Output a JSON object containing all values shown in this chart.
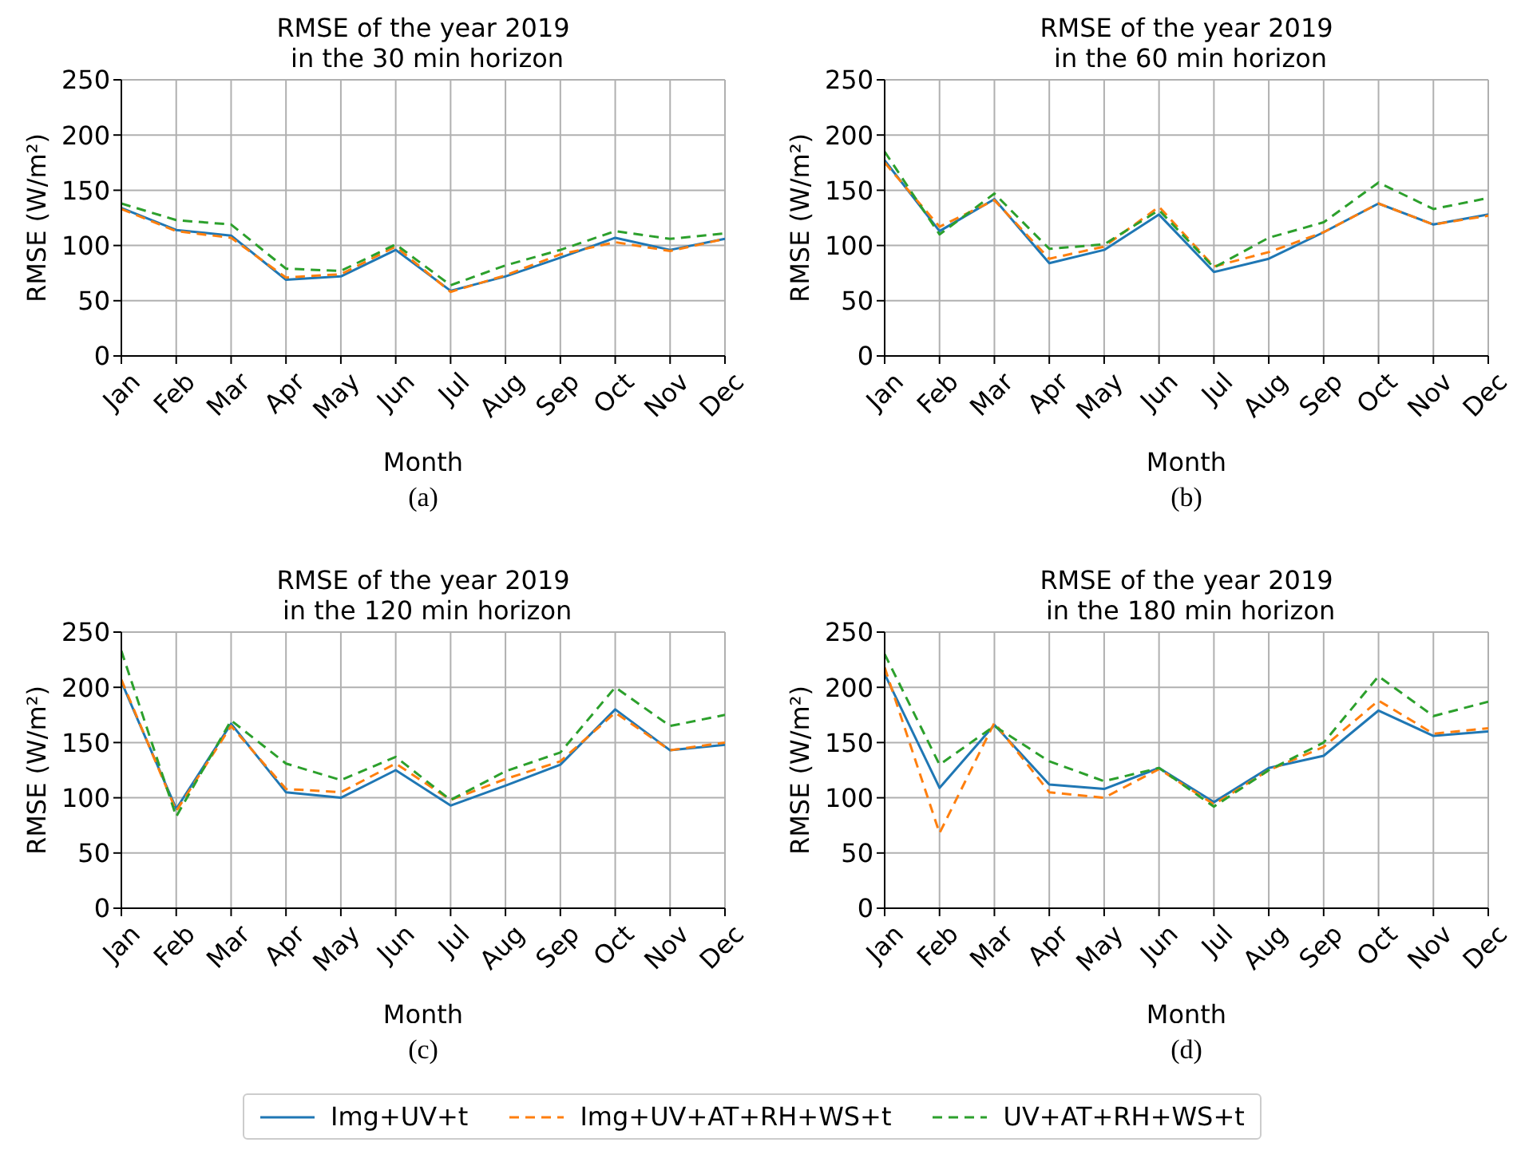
{
  "chart_data": [
    {
      "type": "line",
      "title": "RMSE of the year 2019\n in the 30 min horizon",
      "xlabel": "Month",
      "ylabel": "RMSE (W/m²)",
      "annotations": [
        "(a)"
      ],
      "categories": [
        "Jan",
        "Feb",
        "Mar",
        "Apr",
        "May",
        "Jun",
        "Jul",
        "Aug",
        "Sep",
        "Oct",
        "Nov",
        "Dec"
      ],
      "ylim": [
        0,
        250
      ],
      "yticks": [
        0,
        50,
        100,
        150,
        200,
        250
      ],
      "grid": true,
      "marker": "none",
      "legend": "bottom",
      "series": [
        {
          "name": "Img+UV+t",
          "color": "#1f77b4",
          "line_style": "solid",
          "values": [
            134,
            114,
            109,
            69,
            72,
            96,
            59,
            72,
            89,
            107,
            96,
            106
          ]
        },
        {
          "name": "Img+UV+AT+RH+WS+t",
          "color": "#ff7f0e",
          "line_style": "dashed",
          "values": [
            133,
            113,
            107,
            71,
            74,
            99,
            58,
            73,
            92,
            103,
            95,
            106
          ]
        },
        {
          "name": "UV+AT+RH+WS+t",
          "color": "#2ca02c",
          "line_style": "dashed",
          "values": [
            138,
            123,
            119,
            79,
            77,
            101,
            64,
            82,
            96,
            113,
            106,
            111
          ]
        }
      ]
    },
    {
      "type": "line",
      "title": "RMSE of the year 2019\n in the 60 min horizon",
      "xlabel": "Month",
      "ylabel": "RMSE (W/m²)",
      "annotations": [
        "(b)"
      ],
      "categories": [
        "Jan",
        "Feb",
        "Mar",
        "Apr",
        "May",
        "Jun",
        "Jul",
        "Aug",
        "Sep",
        "Oct",
        "Nov",
        "Dec"
      ],
      "ylim": [
        0,
        250
      ],
      "yticks": [
        0,
        50,
        100,
        150,
        200,
        250
      ],
      "grid": true,
      "marker": "none",
      "series": [
        {
          "color": "#1f77b4",
          "line_style": "solid",
          "values": [
            177,
            113,
            142,
            84,
            96,
            128,
            76,
            88,
            112,
            138,
            119,
            128
          ]
        },
        {
          "color": "#ff7f0e",
          "line_style": "dashed",
          "values": [
            175,
            117,
            141,
            88,
            99,
            135,
            81,
            94,
            112,
            138,
            119,
            127
          ]
        },
        {
          "color": "#2ca02c",
          "line_style": "dashed",
          "values": [
            185,
            110,
            147,
            97,
            101,
            132,
            80,
            107,
            121,
            157,
            133,
            143
          ]
        }
      ]
    },
    {
      "type": "line",
      "title": "RMSE of the year 2019\n in the 120 min horizon",
      "xlabel": "Month",
      "ylabel": "RMSE (W/m²)",
      "annotations": [
        "(c)"
      ],
      "categories": [
        "Jan",
        "Feb",
        "Mar",
        "Apr",
        "May",
        "Jun",
        "Jul",
        "Aug",
        "Sep",
        "Oct",
        "Nov",
        "Dec"
      ],
      "ylim": [
        0,
        250
      ],
      "yticks": [
        0,
        50,
        100,
        150,
        200,
        250
      ],
      "grid": true,
      "marker": "none",
      "series": [
        {
          "color": "#1f77b4",
          "line_style": "solid",
          "values": [
            205,
            90,
            167,
            105,
            100,
            125,
            93,
            111,
            130,
            180,
            143,
            148
          ]
        },
        {
          "color": "#ff7f0e",
          "line_style": "dashed",
          "values": [
            207,
            88,
            165,
            108,
            105,
            131,
            98,
            117,
            133,
            177,
            143,
            150
          ]
        },
        {
          "color": "#2ca02c",
          "line_style": "dashed",
          "values": [
            233,
            83,
            170,
            131,
            116,
            137,
            98,
            124,
            141,
            200,
            165,
            175
          ]
        }
      ]
    },
    {
      "type": "line",
      "title": "RMSE of the year 2019\n in the 180 min horizon",
      "xlabel": "Month",
      "ylabel": "RMSE (W/m²)",
      "annotations": [
        "(d)"
      ],
      "categories": [
        "Jan",
        "Feb",
        "Mar",
        "Apr",
        "May",
        "Jun",
        "Jul",
        "Aug",
        "Sep",
        "Oct",
        "Nov",
        "Dec"
      ],
      "ylim": [
        0,
        250
      ],
      "yticks": [
        0,
        50,
        100,
        150,
        200,
        250
      ],
      "grid": true,
      "marker": "none",
      "series": [
        {
          "color": "#1f77b4",
          "line_style": "solid",
          "values": [
            212,
            109,
            166,
            112,
            108,
            127,
            96,
            127,
            138,
            179,
            156,
            160
          ]
        },
        {
          "color": "#ff7f0e",
          "line_style": "dashed",
          "values": [
            218,
            68,
            168,
            105,
            100,
            126,
            94,
            125,
            146,
            188,
            158,
            163
          ]
        },
        {
          "color": "#2ca02c",
          "line_style": "dashed",
          "values": [
            230,
            130,
            165,
            133,
            115,
            127,
            92,
            125,
            150,
            210,
            174,
            187
          ]
        }
      ]
    }
  ]
}
